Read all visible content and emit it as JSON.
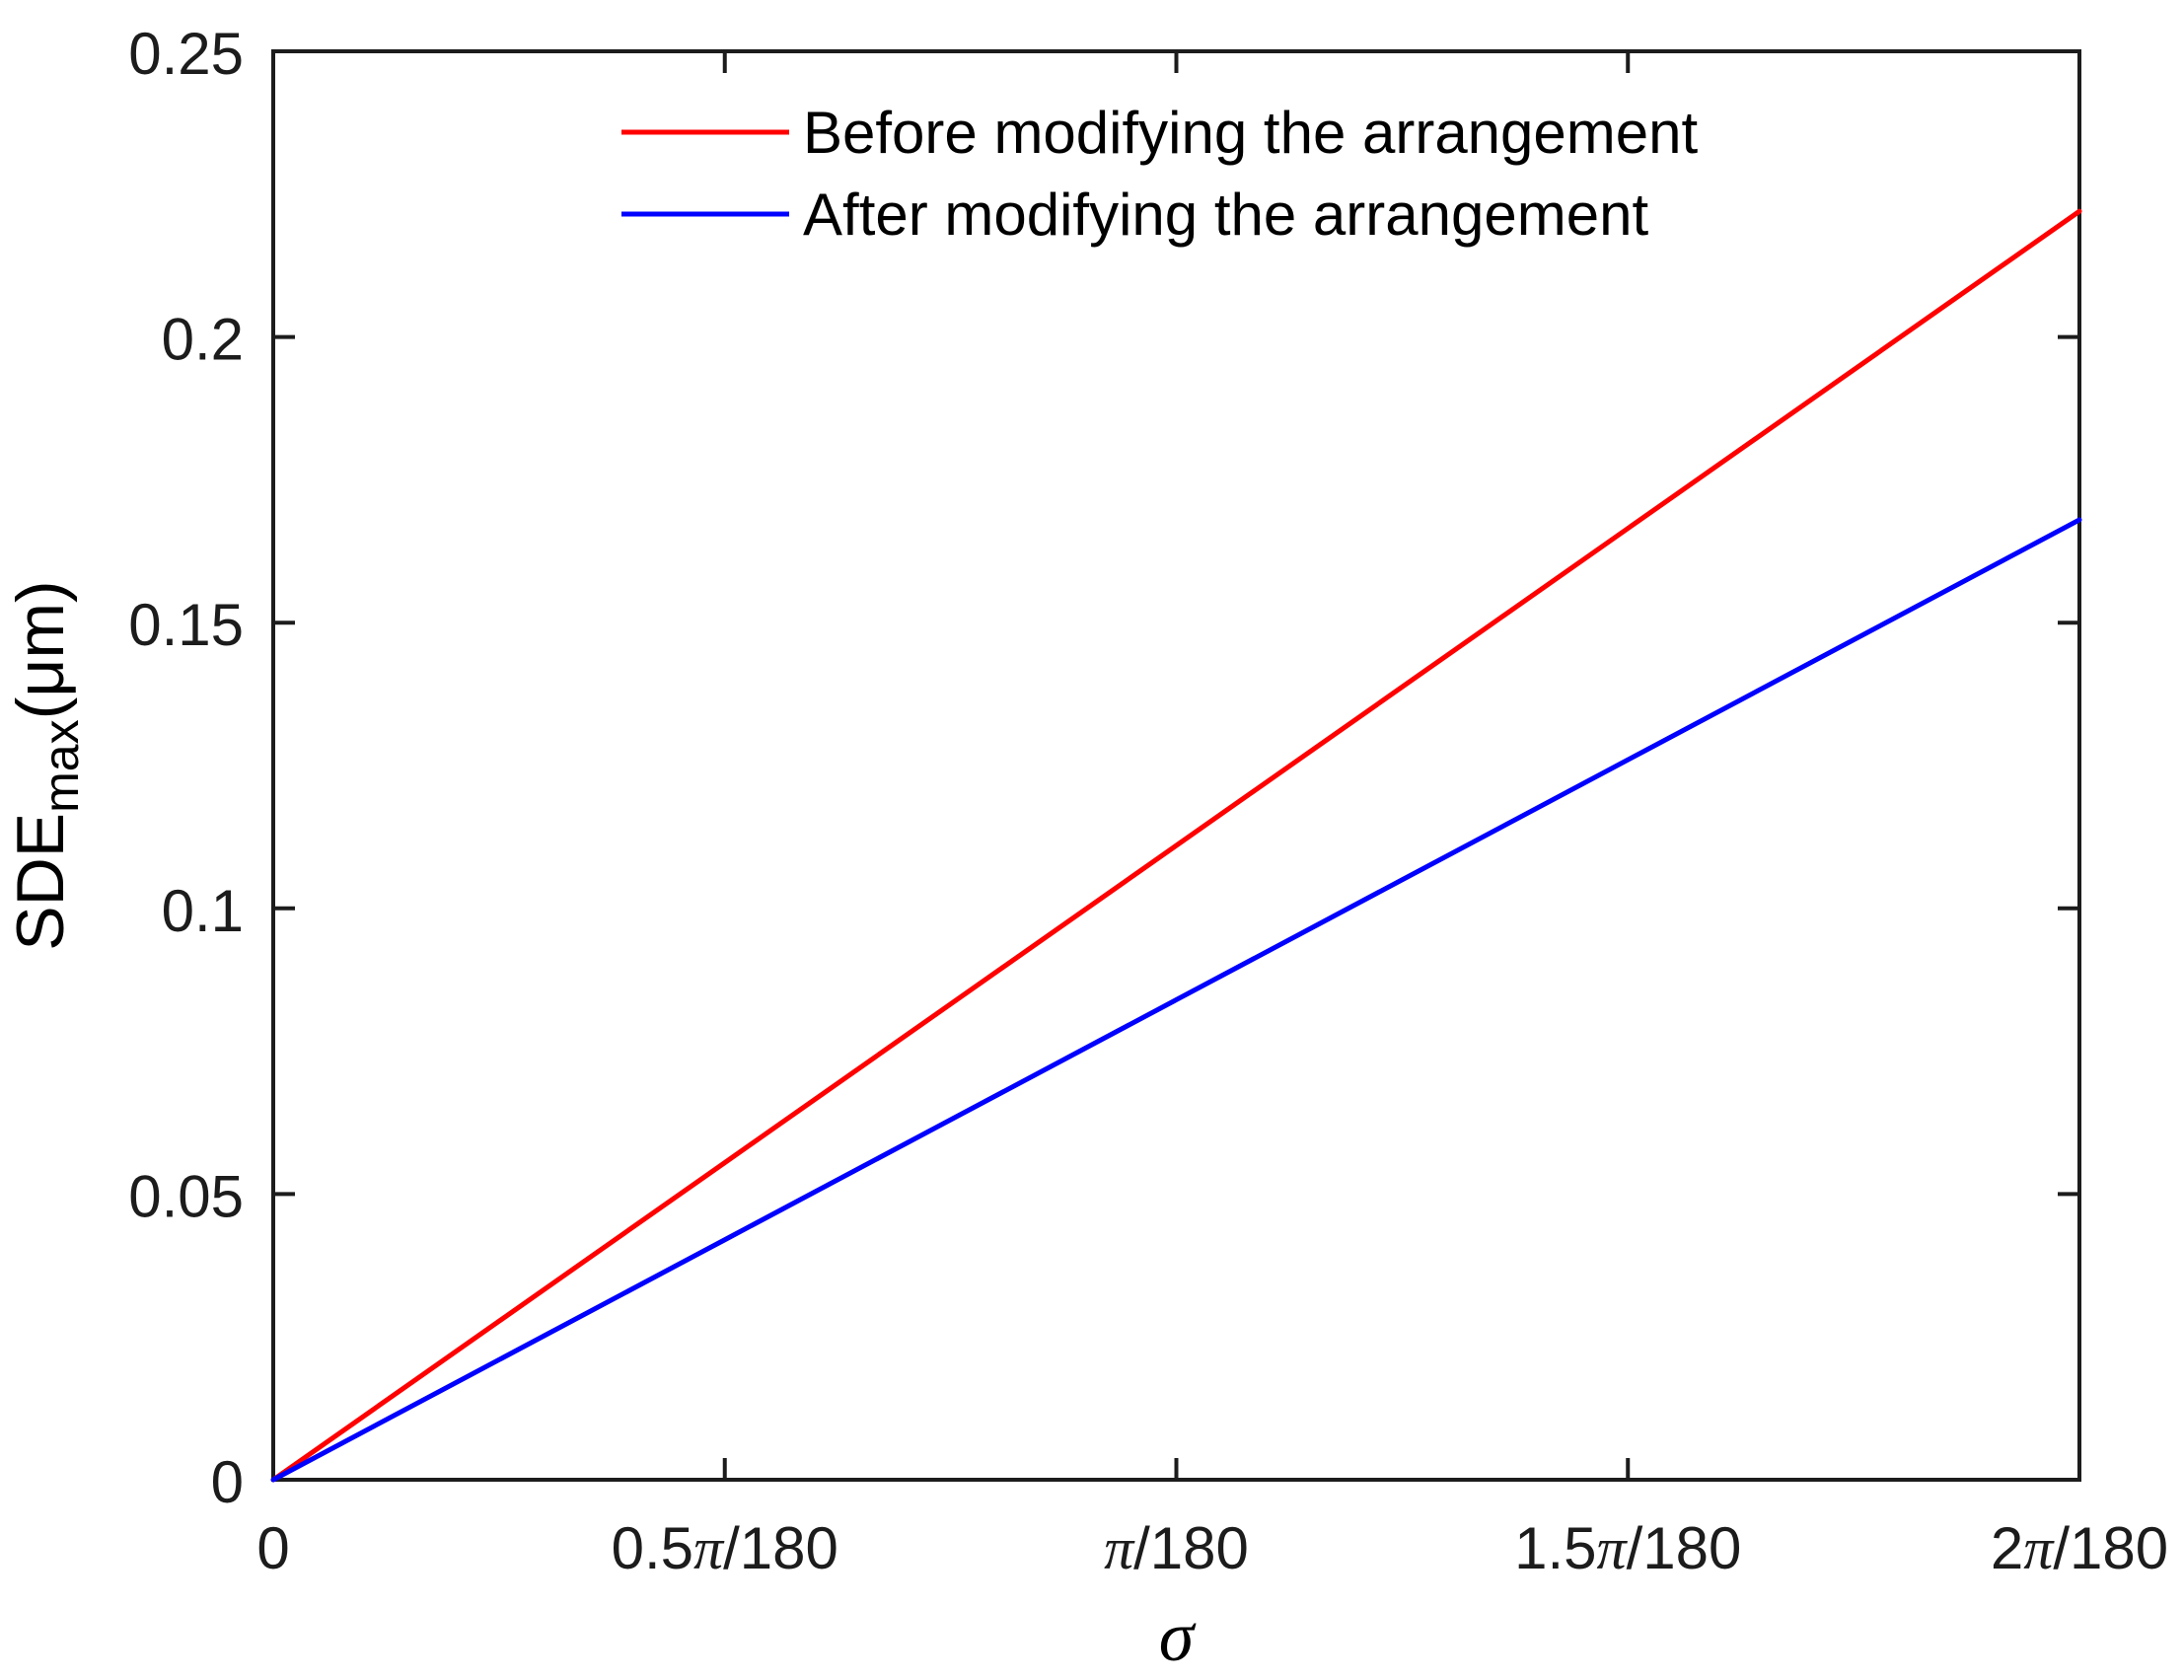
{
  "figure": {
    "background": "#ffffff"
  },
  "chart_data": {
    "type": "line",
    "title": "",
    "xlabel": "σ",
    "ylabel": {
      "prefix": "SDE",
      "subscript": "max",
      "suffix": "(μm)"
    },
    "x_unit": "multiples of π/180 (radians)",
    "xlim": [
      0,
      2
    ],
    "ylim": [
      0,
      0.25
    ],
    "grid": false,
    "box": true,
    "axis_color": "#1c1c1c",
    "xticks": [
      {
        "value": 0,
        "label": "0"
      },
      {
        "value": 0.5,
        "label": "0.5π/180"
      },
      {
        "value": 1,
        "label": "π/180"
      },
      {
        "value": 1.5,
        "label": "1.5π/180"
      },
      {
        "value": 2,
        "label": "2π/180"
      }
    ],
    "yticks": [
      {
        "value": 0,
        "label": "0"
      },
      {
        "value": 0.05,
        "label": "0.05"
      },
      {
        "value": 0.1,
        "label": "0.1"
      },
      {
        "value": 0.15,
        "label": "0.15"
      },
      {
        "value": 0.2,
        "label": "0.2"
      },
      {
        "value": 0.25,
        "label": "0.25"
      }
    ],
    "legend": {
      "position": "top-center",
      "frame": false
    },
    "series": [
      {
        "name": "Before modifying the arrangement",
        "color": "#ff0000",
        "x": [
          0,
          0.5,
          1,
          1.5,
          2
        ],
        "y": [
          0,
          0.0555,
          0.111,
          0.1665,
          0.222
        ]
      },
      {
        "name": "After modifying the arrangement",
        "color": "#0000ff",
        "x": [
          0,
          0.5,
          1,
          1.5,
          2
        ],
        "y": [
          0,
          0.042,
          0.084,
          0.126,
          0.168
        ]
      }
    ]
  }
}
